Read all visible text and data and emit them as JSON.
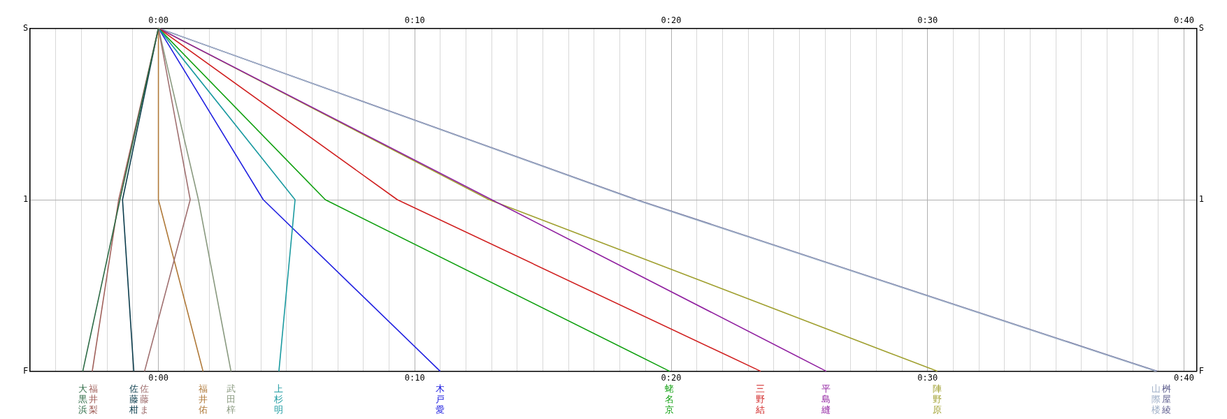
{
  "chart_data": {
    "type": "line",
    "orientation": "horizontal",
    "grid": true,
    "legend": false,
    "marker": "none",
    "line_style": "solid",
    "categories": [
      "S",
      "1",
      "F"
    ],
    "xlim": [
      -5,
      40.5
    ],
    "x2lim": [
      -5,
      40.5
    ],
    "xticks": [
      {
        "value": -5,
        "label": null
      },
      {
        "value": -4,
        "label": null
      },
      {
        "value": -3,
        "label": null
      },
      {
        "value": -2,
        "label": null
      },
      {
        "value": -1,
        "label": null
      },
      {
        "value": 0,
        "label": "0:00"
      },
      {
        "value": 1,
        "label": null
      },
      {
        "value": 2,
        "label": null
      },
      {
        "value": 3,
        "label": null
      },
      {
        "value": 4,
        "label": null
      },
      {
        "value": 5,
        "label": null
      },
      {
        "value": 6,
        "label": null
      },
      {
        "value": 7,
        "label": null
      },
      {
        "value": 8,
        "label": null
      },
      {
        "value": 9,
        "label": null
      },
      {
        "value": 10,
        "label": "0:10"
      },
      {
        "value": 11,
        "label": null
      },
      {
        "value": 12,
        "label": null
      },
      {
        "value": 13,
        "label": null
      },
      {
        "value": 14,
        "label": null
      },
      {
        "value": 15,
        "label": null
      },
      {
        "value": 16,
        "label": null
      },
      {
        "value": 17,
        "label": null
      },
      {
        "value": 18,
        "label": null
      },
      {
        "value": 19,
        "label": null
      },
      {
        "value": 20,
        "label": "0:20"
      },
      {
        "value": 21,
        "label": null
      },
      {
        "value": 22,
        "label": null
      },
      {
        "value": 23,
        "label": null
      },
      {
        "value": 24,
        "label": null
      },
      {
        "value": 25,
        "label": null
      },
      {
        "value": 26,
        "label": null
      },
      {
        "value": 27,
        "label": null
      },
      {
        "value": 28,
        "label": null
      },
      {
        "value": 29,
        "label": null
      },
      {
        "value": 30,
        "label": "0:30"
      },
      {
        "value": 31,
        "label": null
      },
      {
        "value": 32,
        "label": null
      },
      {
        "value": 33,
        "label": null
      },
      {
        "value": 34,
        "label": null
      },
      {
        "value": 35,
        "label": null
      },
      {
        "value": 36,
        "label": null
      },
      {
        "value": 37,
        "label": null
      },
      {
        "value": 38,
        "label": null
      },
      {
        "value": 39,
        "label": null
      },
      {
        "value": 40,
        "label": "0:40"
      }
    ],
    "x2ticks": [
      {
        "value": 0,
        "label": "0:00"
      },
      {
        "value": 10,
        "label": "0:10"
      },
      {
        "value": 20,
        "label": "0:20"
      },
      {
        "value": 30,
        "label": "0:30"
      },
      {
        "value": 40,
        "label": "0:40"
      }
    ],
    "series": [
      {
        "name": "大黒浜",
        "color": "#2e6b46",
        "values": [
          0,
          -1.5,
          -2.95
        ]
      },
      {
        "name": "福井梨",
        "color": "#a0605a",
        "values": [
          0,
          -1.55,
          -2.58
        ]
      },
      {
        "name": "佐藤柑",
        "color": "#0b3c4c",
        "values": [
          0,
          -1.4,
          -0.96
        ]
      },
      {
        "name": "佐藤ま",
        "color": "#a07070",
        "values": [
          0,
          1.24,
          -0.54
        ]
      },
      {
        "name": "福井佑",
        "color": "#b07a3a",
        "values": [
          0,
          0,
          1.74
        ]
      },
      {
        "name": "武田梓",
        "color": "#8a9a80",
        "values": [
          0,
          1.56,
          2.83
        ]
      },
      {
        "name": "上杉明",
        "color": "#1a9aa0",
        "values": [
          0,
          5.33,
          4.7
        ]
      },
      {
        "name": "木戸愛",
        "color": "#2020e0",
        "values": [
          0,
          4.09,
          10.99
        ]
      },
      {
        "name": "蛯名京",
        "color": "#10a010",
        "values": [
          0,
          6.51,
          19.94
        ]
      },
      {
        "name": "三野結",
        "color": "#d02020",
        "values": [
          0,
          9.32,
          23.49
        ]
      },
      {
        "name": "平島縫",
        "color": "#9020a0",
        "values": [
          0,
          13,
          26.05
        ]
      },
      {
        "name": "陣野原",
        "color": "#a0a030",
        "values": [
          0,
          12.9,
          30.38
        ]
      },
      {
        "name": "山際楼",
        "color": "#a0b0c8",
        "values": [
          0,
          18.6,
          38.9
        ]
      },
      {
        "name": "桝屋綾",
        "color": "#606090",
        "values": [
          0,
          18.65,
          38.95
        ]
      }
    ]
  }
}
